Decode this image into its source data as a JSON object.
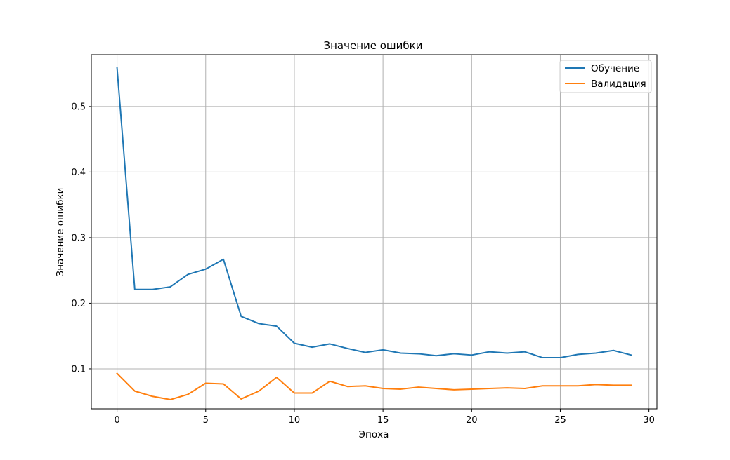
{
  "chart_data": {
    "type": "line",
    "title": "Значение ошибки",
    "xlabel": "Эпоха",
    "ylabel": "Значение ошибки",
    "xlim": [
      -1.45,
      30.45
    ],
    "ylim": [
      0.039,
      0.579
    ],
    "xticks": [
      0,
      5,
      10,
      15,
      20,
      25,
      30
    ],
    "xtick_labels": [
      "0",
      "5",
      "10",
      "15",
      "20",
      "25",
      "30"
    ],
    "yticks": [
      0.1,
      0.2,
      0.3,
      0.4,
      0.5
    ],
    "ytick_labels": [
      "0.1",
      "0.2",
      "0.3",
      "0.4",
      "0.5"
    ],
    "grid": true,
    "legend_position": "top-right",
    "x": [
      0,
      1,
      2,
      3,
      4,
      5,
      6,
      7,
      8,
      9,
      10,
      11,
      12,
      13,
      14,
      15,
      16,
      17,
      18,
      19,
      20,
      21,
      22,
      23,
      24,
      25,
      26,
      27,
      28,
      29
    ],
    "series": [
      {
        "name": "Обучение",
        "color": "#1f77b4",
        "values": [
          0.559,
          0.221,
          0.221,
          0.225,
          0.244,
          0.252,
          0.267,
          0.18,
          0.169,
          0.165,
          0.139,
          0.133,
          0.138,
          0.131,
          0.125,
          0.129,
          0.124,
          0.123,
          0.12,
          0.123,
          0.121,
          0.126,
          0.124,
          0.126,
          0.117,
          0.117,
          0.122,
          0.124,
          0.128,
          0.121
        ]
      },
      {
        "name": "Валидация",
        "color": "#ff7f0e",
        "values": [
          0.093,
          0.066,
          0.058,
          0.053,
          0.061,
          0.078,
          0.077,
          0.054,
          0.066,
          0.087,
          0.063,
          0.063,
          0.081,
          0.073,
          0.074,
          0.07,
          0.069,
          0.072,
          0.07,
          0.068,
          0.069,
          0.07,
          0.071,
          0.07,
          0.074,
          0.074,
          0.074,
          0.076,
          0.075,
          0.075
        ]
      }
    ]
  }
}
